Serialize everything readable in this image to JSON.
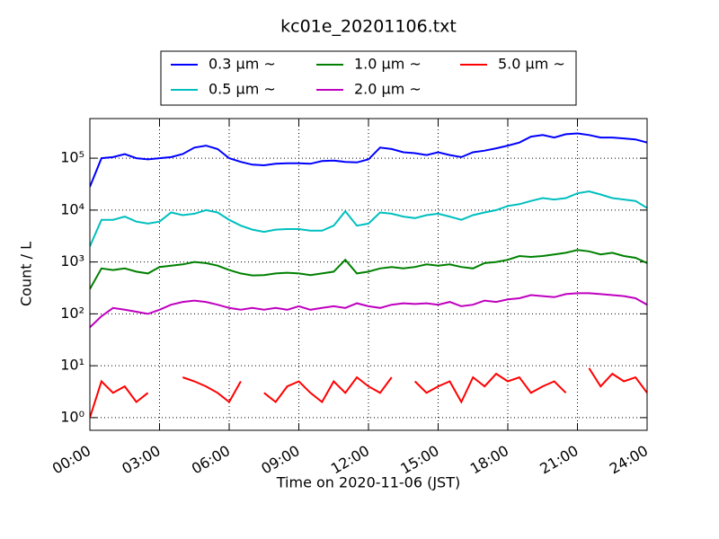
{
  "chart_data": {
    "type": "line",
    "title": "kc01e_20201106.txt",
    "x_label": "Time on 2020-11-06 (JST)",
    "y_label": "Count / L",
    "log_y": true,
    "grid": true,
    "legend": "top",
    "xlim": [
      0,
      24
    ],
    "xticks": [
      {
        "value": 0,
        "label": "00:00"
      },
      {
        "value": 3,
        "label": "03:00"
      },
      {
        "value": 6,
        "label": "06:00"
      },
      {
        "value": 9,
        "label": "09:00"
      },
      {
        "value": 12,
        "label": "12:00"
      },
      {
        "value": 15,
        "label": "15:00"
      },
      {
        "value": 18,
        "label": "18:00"
      },
      {
        "value": 21,
        "label": "21:00"
      },
      {
        "value": 24,
        "label": "24:00"
      }
    ],
    "ylim": [
      0.57,
      580000
    ],
    "yticks": [
      {
        "value": 1,
        "label": "10⁰"
      },
      {
        "value": 10,
        "label": "10¹"
      },
      {
        "value": 100,
        "label": "10²"
      },
      {
        "value": 1000,
        "label": "10³"
      },
      {
        "value": 10000,
        "label": "10⁴"
      },
      {
        "value": 100000,
        "label": "10⁵"
      }
    ],
    "x": [
      0,
      0.5,
      1,
      1.5,
      2,
      2.5,
      3,
      3.5,
      4,
      4.5,
      5,
      5.5,
      6,
      6.5,
      7,
      7.5,
      8,
      8.5,
      9,
      9.5,
      10,
      10.5,
      11,
      11.5,
      12,
      12.5,
      13,
      13.5,
      14,
      14.5,
      15,
      15.5,
      16,
      16.5,
      17,
      17.5,
      18,
      18.5,
      19,
      19.5,
      20,
      20.5,
      21,
      21.5,
      22,
      22.5,
      23,
      23.5,
      24
    ],
    "series": [
      {
        "name": "0.3 μm  ~",
        "color": "#0000ff",
        "values": [
          28000,
          100000,
          105000,
          120000,
          100000,
          95000,
          100000,
          105000,
          120000,
          160000,
          175000,
          150000,
          100000,
          85000,
          75000,
          73000,
          78000,
          80000,
          80000,
          78000,
          88000,
          90000,
          85000,
          83000,
          95000,
          160000,
          150000,
          130000,
          125000,
          115000,
          130000,
          115000,
          105000,
          130000,
          140000,
          155000,
          175000,
          200000,
          260000,
          280000,
          250000,
          290000,
          300000,
          280000,
          250000,
          250000,
          240000,
          230000,
          200000
        ]
      },
      {
        "name": "0.5 μm  ~",
        "color": "#00bfbf",
        "values": [
          2000,
          6500,
          6500,
          7500,
          6000,
          5500,
          6000,
          9000,
          8000,
          8500,
          10000,
          9000,
          6500,
          5000,
          4200,
          3800,
          4200,
          4300,
          4300,
          4000,
          4000,
          5000,
          9500,
          5000,
          5500,
          9000,
          8500,
          7500,
          7000,
          8000,
          8500,
          7500,
          6500,
          8000,
          9000,
          10000,
          12000,
          13000,
          15000,
          17000,
          16000,
          17000,
          21000,
          23000,
          20000,
          17000,
          16000,
          15000,
          11000
        ]
      },
      {
        "name": "1.0 μm  ~",
        "color": "#008000",
        "values": [
          300,
          750,
          700,
          750,
          650,
          600,
          800,
          850,
          900,
          1000,
          950,
          850,
          700,
          600,
          550,
          560,
          600,
          620,
          600,
          560,
          600,
          650,
          1100,
          600,
          650,
          750,
          800,
          750,
          800,
          900,
          850,
          900,
          800,
          750,
          950,
          1000,
          1100,
          1300,
          1250,
          1300,
          1400,
          1500,
          1700,
          1600,
          1400,
          1500,
          1300,
          1200,
          950
        ]
      },
      {
        "name": "2.0 μm  ~",
        "color": "#bf00bf",
        "values": [
          55,
          90,
          130,
          120,
          110,
          100,
          120,
          150,
          170,
          180,
          170,
          150,
          130,
          120,
          130,
          120,
          130,
          120,
          140,
          120,
          130,
          140,
          130,
          160,
          140,
          130,
          150,
          160,
          155,
          160,
          150,
          170,
          140,
          150,
          180,
          170,
          190,
          200,
          230,
          220,
          210,
          240,
          250,
          250,
          240,
          230,
          220,
          200,
          150
        ]
      },
      {
        "name": "5.0 μm  ~",
        "color": "#ff0000",
        "values": [
          1,
          5,
          3,
          4,
          2,
          3,
          null,
          null,
          6,
          5,
          4,
          3,
          2,
          5,
          null,
          3,
          2,
          4,
          5,
          3,
          2,
          5,
          3,
          6,
          4,
          3,
          6,
          null,
          5,
          3,
          4,
          5,
          2,
          6,
          4,
          7,
          5,
          6,
          3,
          4,
          5,
          3,
          null,
          9,
          4,
          7,
          5,
          6,
          3
        ]
      }
    ]
  }
}
